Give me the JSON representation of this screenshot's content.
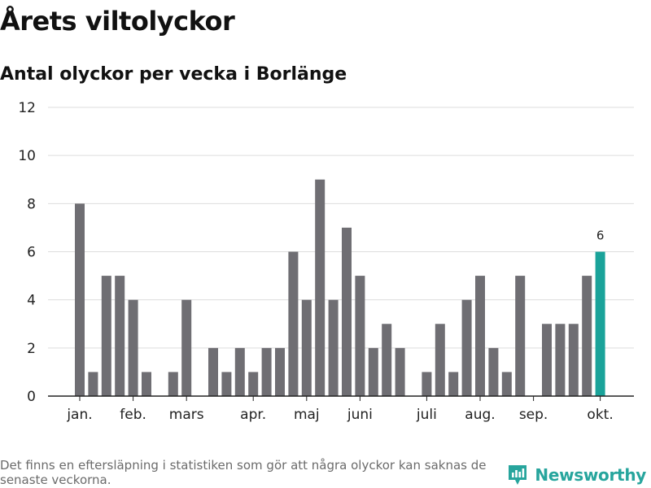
{
  "title": "Årets viltolyckor",
  "subtitle": "Antal olyckor per vecka i Borlänge",
  "footnote": "Det finns en eftersläpning i statistiken som gör att några olyckor kan saknas de senaste veckorna.",
  "brand": {
    "name": "Newsworthy",
    "icon": "newsworthy-logo-icon"
  },
  "colors": {
    "bar": "#6f6e73",
    "highlight": "#1aa39a",
    "grid": "#dddddd",
    "axis": "#222222"
  },
  "chart_data": {
    "type": "bar",
    "title": "Årets viltolyckor",
    "subtitle": "Antal olyckor per vecka i Borlänge",
    "xlabel": "",
    "ylabel": "",
    "x": [
      1,
      2,
      3,
      4,
      5,
      6,
      7,
      8,
      9,
      10,
      11,
      12,
      13,
      14,
      15,
      16,
      17,
      18,
      19,
      20,
      21,
      22,
      23,
      24,
      25,
      26,
      27,
      28,
      29,
      30,
      31,
      32,
      33,
      34,
      35,
      36,
      37,
      38,
      39,
      40
    ],
    "values": [
      8,
      1,
      5,
      5,
      4,
      1,
      0,
      1,
      4,
      0,
      2,
      1,
      2,
      1,
      2,
      2,
      6,
      4,
      9,
      4,
      7,
      5,
      2,
      3,
      2,
      0,
      1,
      3,
      1,
      4,
      5,
      2,
      1,
      5,
      0,
      3,
      3,
      3,
      5,
      6
    ],
    "highlight_index": 39,
    "highlight_label": "6",
    "ylim": [
      0,
      12
    ],
    "yticks": [
      0,
      2,
      4,
      6,
      8,
      10,
      12
    ],
    "month_ticks": [
      {
        "label": "jan.",
        "week": 1
      },
      {
        "label": "feb.",
        "week": 5
      },
      {
        "label": "mars",
        "week": 9
      },
      {
        "label": "apr.",
        "week": 14
      },
      {
        "label": "maj",
        "week": 18
      },
      {
        "label": "juni",
        "week": 22
      },
      {
        "label": "juli",
        "week": 27
      },
      {
        "label": "aug.",
        "week": 31
      },
      {
        "label": "sep.",
        "week": 35
      },
      {
        "label": "okt.",
        "week": 40
      }
    ],
    "grid": true,
    "legend": "none"
  }
}
